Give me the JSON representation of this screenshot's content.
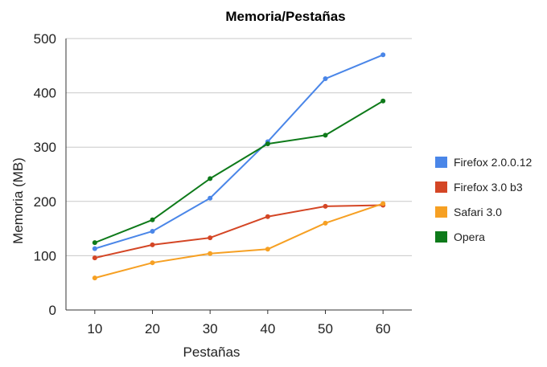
{
  "chart_data": {
    "type": "line",
    "title": "Memoria/Pestañas",
    "xlabel": "Pestañas",
    "ylabel": "Memoria (MB)",
    "x": [
      10,
      20,
      30,
      40,
      50,
      60
    ],
    "x_tick_labels": [
      "10",
      "20",
      "30",
      "40",
      "50",
      "60"
    ],
    "ylim": [
      0,
      500
    ],
    "y_ticks": [
      0,
      100,
      200,
      300,
      400,
      500
    ],
    "y_tick_labels": [
      "0",
      "100",
      "200",
      "300",
      "400",
      "500"
    ],
    "grid": true,
    "legend_position": "right",
    "series": [
      {
        "name": "Firefox 2.0.0.12",
        "color": "#4a86e8",
        "values": [
          113,
          145,
          206,
          310,
          426,
          470
        ]
      },
      {
        "name": "Firefox 3.0 b3",
        "color": "#d44625",
        "values": [
          96,
          120,
          133,
          172,
          191,
          193
        ]
      },
      {
        "name": "Safari 3.0",
        "color": "#f6a023",
        "values": [
          59,
          87,
          104,
          112,
          160,
          196
        ]
      },
      {
        "name": "Opera",
        "color": "#0e7a1a",
        "values": [
          124,
          166,
          242,
          306,
          322,
          385
        ]
      }
    ]
  }
}
